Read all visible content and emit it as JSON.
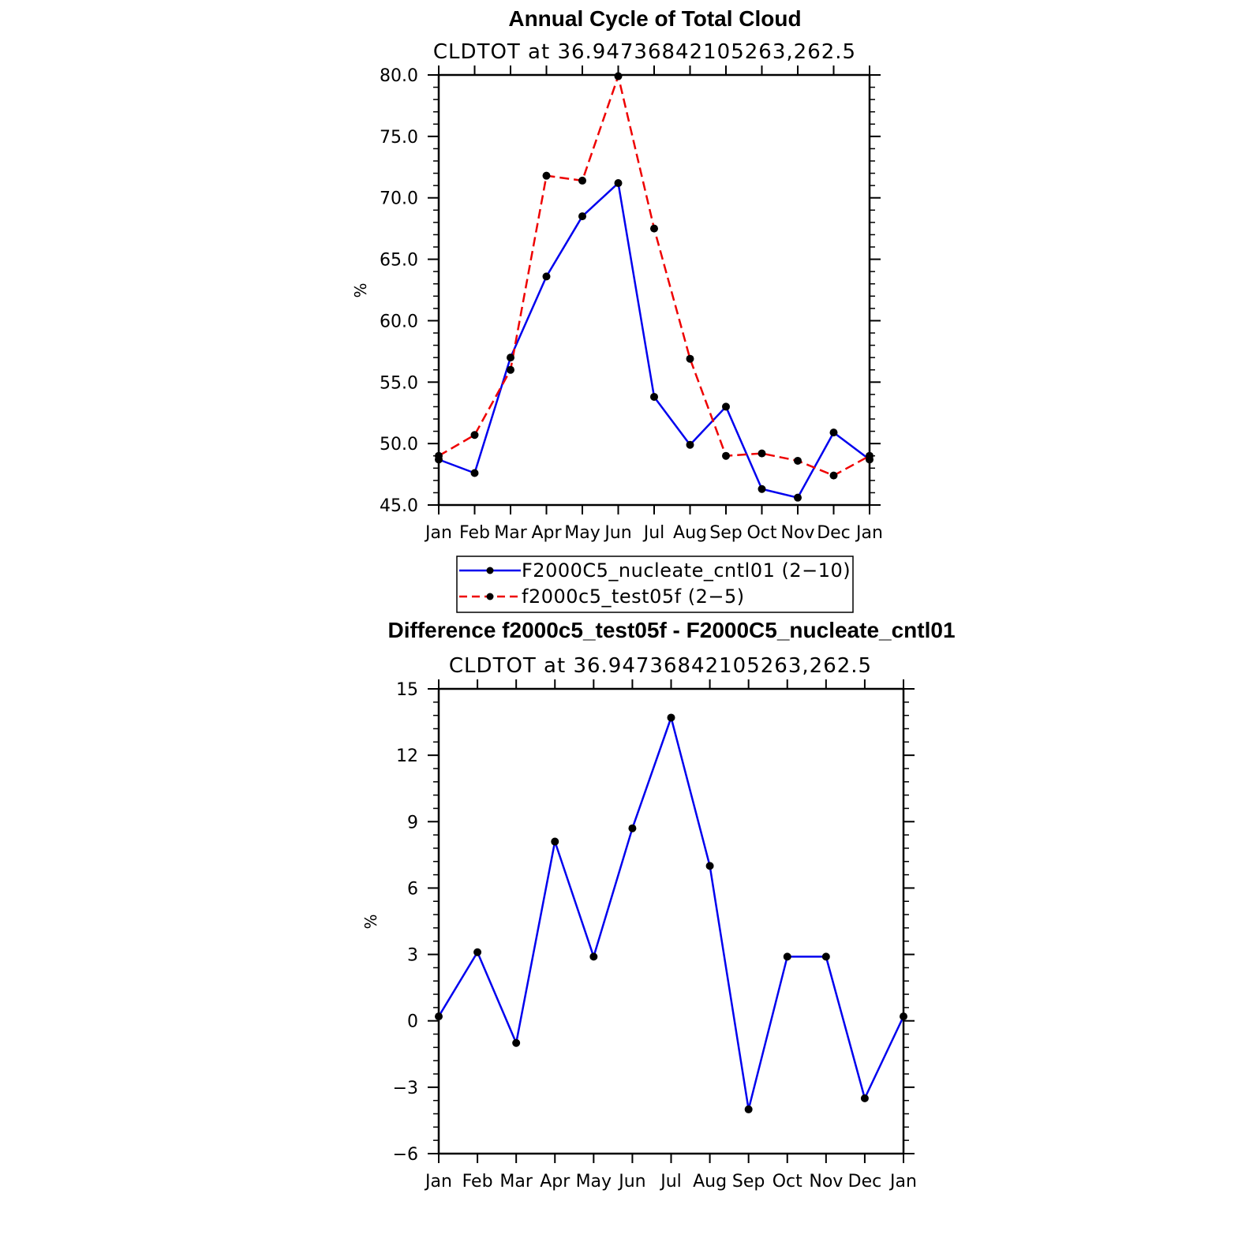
{
  "chart_data": [
    {
      "type": "line",
      "title": "Annual Cycle of Total Cloud",
      "subtitle": "CLDTOT at 36.94736842105263,262.5",
      "ylabel": "%",
      "xlabel": "",
      "categories": [
        "Jan",
        "Feb",
        "Mar",
        "Apr",
        "May",
        "Jun",
        "Jul",
        "Aug",
        "Sep",
        "Oct",
        "Nov",
        "Dec",
        "Jan"
      ],
      "ylim": [
        45,
        80
      ],
      "yticks": [
        45,
        50,
        55,
        60,
        65,
        70,
        75,
        80
      ],
      "ytick_labels": [
        "45.0",
        "50.0",
        "55.0",
        "60.0",
        "65.0",
        "70.0",
        "75.0",
        "80.0"
      ],
      "series": [
        {
          "name": "F2000C5_nucleate_cntl01 (2-10)",
          "color": "#0000ee",
          "dash": "solid",
          "values": [
            48.7,
            47.6,
            57.0,
            63.6,
            68.5,
            71.2,
            53.8,
            49.9,
            53.0,
            46.3,
            45.6,
            50.9,
            48.7
          ]
        },
        {
          "name": "f2000c5_test05f (2-5)",
          "color": "#ee0000",
          "dash": "dashed",
          "values": [
            49.0,
            50.7,
            56.0,
            71.8,
            71.4,
            79.9,
            67.5,
            56.9,
            49.0,
            49.2,
            48.6,
            47.4,
            49.0
          ]
        }
      ],
      "legend": {
        "position": "below",
        "labels": [
          "F2000C5_nucleate_cntl01 (2−10)",
          "f2000c5_test05f (2−5)"
        ]
      }
    },
    {
      "type": "line",
      "title": "Difference f2000c5_test05f - F2000C5_nucleate_cntl01",
      "subtitle": "CLDTOT at 36.94736842105263,262.5",
      "ylabel": "%",
      "xlabel": "",
      "categories": [
        "Jan",
        "Feb",
        "Mar",
        "Apr",
        "May",
        "Jun",
        "Jul",
        "Aug",
        "Sep",
        "Oct",
        "Nov",
        "Dec",
        "Jan"
      ],
      "ylim": [
        -6,
        15
      ],
      "yticks": [
        -6,
        -3,
        0,
        3,
        6,
        9,
        12,
        15
      ],
      "ytick_labels": [
        "−6",
        "−3",
        "0",
        "3",
        "6",
        "9",
        "12",
        "15"
      ],
      "series": [
        {
          "name": "difference",
          "color": "#0000ee",
          "dash": "solid",
          "values": [
            0.2,
            3.1,
            -1.0,
            8.1,
            2.9,
            8.7,
            13.7,
            7.0,
            -4.0,
            2.9,
            2.9,
            -3.5,
            0.2
          ]
        }
      ]
    }
  ]
}
